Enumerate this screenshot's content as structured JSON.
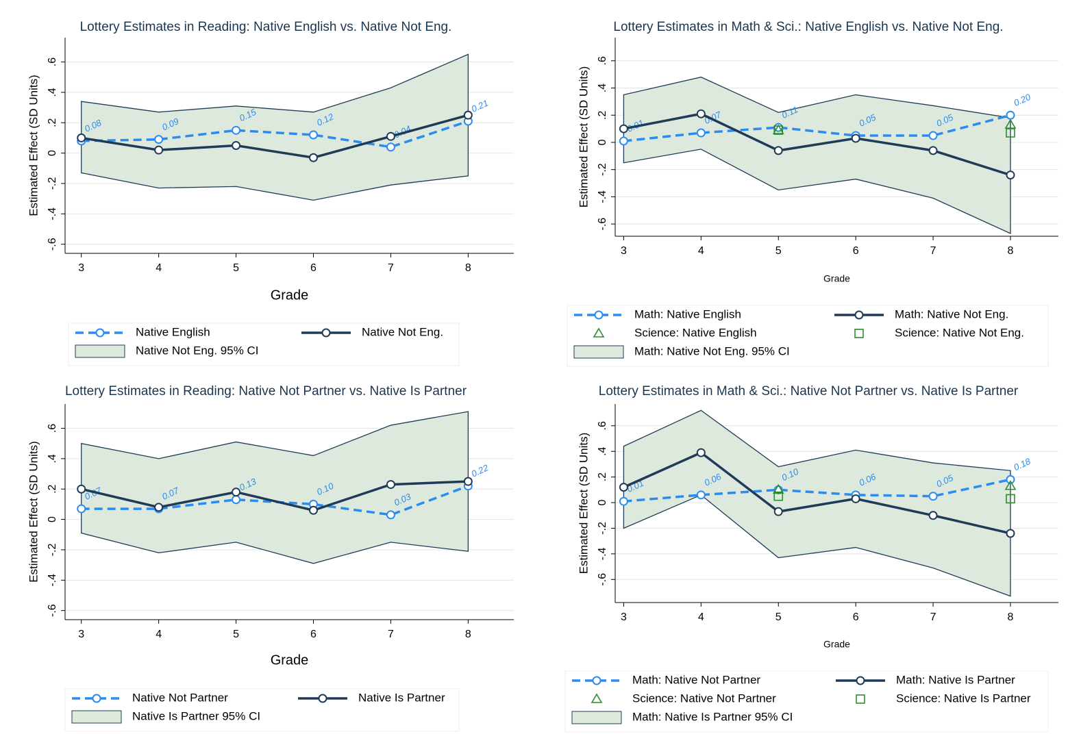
{
  "chart_data": [
    {
      "type": "line",
      "title": "Lottery Estimates in Reading: Native English vs. Native Not Eng.",
      "x_label": "Grade",
      "y_label": "Estimated Effect (SD Units)",
      "x": [
        3,
        4,
        5,
        6,
        7,
        8
      ],
      "xlim": [
        2.79,
        8.59
      ],
      "xticks": [
        3,
        4,
        5,
        6,
        7,
        8
      ],
      "ylim": [
        -0.66,
        0.76
      ],
      "yticks": [
        {
          "value": -0.6,
          "label": "-.6"
        },
        {
          "value": -0.4,
          "label": "-.4"
        },
        {
          "value": -0.2,
          "label": "-.2"
        },
        0,
        {
          "value": 0.2,
          "label": ".2"
        },
        {
          "value": 0.4,
          "label": ".4"
        },
        {
          "value": 0.6,
          "label": ".6"
        }
      ],
      "grid": true,
      "ci": {
        "name": "Native Not Eng. 95% CI",
        "color": "#dde9dc",
        "lower": [
          -0.13,
          -0.23,
          -0.22,
          -0.31,
          -0.21,
          -0.15
        ],
        "upper": [
          0.34,
          0.27,
          0.31,
          0.27,
          0.43,
          0.65
        ]
      },
      "series": [
        {
          "name": "Native English",
          "color": "#2a8cf0",
          "style": "dashed",
          "marker": "circle",
          "values": [
            0.08,
            0.09,
            0.15,
            0.12,
            0.04,
            0.21
          ],
          "value_labels": [
            "0.08",
            "0.09",
            "0.15",
            "0.12",
            "0.04",
            "0.21"
          ]
        },
        {
          "name": "Native Not Eng.",
          "color": "#1f3b58",
          "style": "solid",
          "marker": "circle",
          "values": [
            0.1,
            0.02,
            0.05,
            -0.03,
            0.11,
            0.25
          ]
        }
      ]
    },
    {
      "type": "line",
      "title": "Lottery Estimates in Math & Sci.: Native English vs. Native Not Eng.",
      "x_label": "Grade",
      "y_label": "Estimated Effect (SD Units)",
      "x": [
        3,
        4,
        5,
        6,
        7,
        8
      ],
      "xlim": [
        2.89,
        8.62
      ],
      "xticks": [
        3,
        4,
        5,
        6,
        7,
        8
      ],
      "ylim": [
        -0.69,
        0.77
      ],
      "yticks": [
        {
          "value": -0.6,
          "label": "-.6"
        },
        {
          "value": -0.4,
          "label": "-.4"
        },
        {
          "value": -0.2,
          "label": "-.2"
        },
        0,
        {
          "value": 0.2,
          "label": ".2"
        },
        {
          "value": 0.4,
          "label": ".4"
        },
        {
          "value": 0.6,
          "label": ".6"
        }
      ],
      "grid": true,
      "ci": {
        "name": "Math: Native Not Eng. 95% CI",
        "color": "#dde9dc",
        "lower": [
          -0.15,
          -0.05,
          -0.35,
          -0.27,
          -0.41,
          -0.67
        ],
        "upper": [
          0.35,
          0.48,
          0.22,
          0.35,
          0.27,
          0.18
        ]
      },
      "series": [
        {
          "name": "Math: Native English",
          "color": "#2a8cf0",
          "style": "dashed",
          "marker": "circle",
          "values": [
            0.01,
            0.07,
            0.11,
            0.05,
            0.05,
            0.2
          ],
          "value_labels": [
            "0.01",
            "0.07",
            "0.11",
            "0.05",
            "0.05",
            "0.20"
          ]
        },
        {
          "name": "Math: Native Not Eng.",
          "color": "#1f3b58",
          "style": "solid",
          "marker": "circle",
          "values": [
            0.1,
            0.21,
            -0.06,
            0.03,
            -0.06,
            -0.24
          ]
        },
        {
          "name": "Science: Native English",
          "color": "#2e8b2e",
          "style": "none",
          "marker": "triangle",
          "values": [
            null,
            null,
            0.09,
            null,
            null,
            0.13
          ]
        },
        {
          "name": "Science: Native Not Eng.",
          "color": "#2e8b2e",
          "style": "none",
          "marker": "square",
          "values": [
            null,
            null,
            0.09,
            null,
            null,
            0.07
          ]
        }
      ]
    },
    {
      "type": "line",
      "title": "Lottery Estimates in Reading: Native Not Partner vs. Native Is Partner",
      "x_label": "Grade",
      "y_label": "Estimated Effect (SD Units)",
      "x": [
        3,
        4,
        5,
        6,
        7,
        8
      ],
      "xlim": [
        2.79,
        8.59
      ],
      "xticks": [
        3,
        4,
        5,
        6,
        7,
        8
      ],
      "ylim": [
        -0.66,
        0.76
      ],
      "yticks": [
        {
          "value": -0.6,
          "label": "-.6"
        },
        {
          "value": -0.4,
          "label": "-.4"
        },
        {
          "value": -0.2,
          "label": "-.2"
        },
        0,
        {
          "value": 0.2,
          "label": ".2"
        },
        {
          "value": 0.4,
          "label": ".4"
        },
        {
          "value": 0.6,
          "label": ".6"
        }
      ],
      "grid": true,
      "ci": {
        "name": "Native Is Partner 95% CI",
        "color": "#dde9dc",
        "lower": [
          -0.09,
          -0.22,
          -0.15,
          -0.29,
          -0.15,
          -0.21
        ],
        "upper": [
          0.5,
          0.4,
          0.51,
          0.42,
          0.62,
          0.71
        ]
      },
      "series": [
        {
          "name": "Native Not Partner",
          "color": "#2a8cf0",
          "style": "dashed",
          "marker": "circle",
          "values": [
            0.07,
            0.07,
            0.13,
            0.1,
            0.03,
            0.22
          ],
          "value_labels": [
            "0.07",
            "0.07",
            "0.13",
            "0.10",
            "0.03",
            "0.22"
          ]
        },
        {
          "name": "Native Is Partner",
          "color": "#1f3b58",
          "style": "solid",
          "marker": "circle",
          "values": [
            0.2,
            0.08,
            0.18,
            0.06,
            0.23,
            0.25
          ]
        }
      ]
    },
    {
      "type": "line",
      "title": "Lottery Estimates in Math & Sci.: Native Not Partner vs. Native Is Partner",
      "x_label": "Grade",
      "y_label": "Estimated Effect (SD Units)",
      "x": [
        3,
        4,
        5,
        6,
        7,
        8
      ],
      "xlim": [
        2.89,
        8.62
      ],
      "xticks": [
        3,
        4,
        5,
        6,
        7,
        8
      ],
      "ylim": [
        -0.78,
        0.77
      ],
      "yticks": [
        {
          "value": -0.6,
          "label": "-.6"
        },
        {
          "value": -0.4,
          "label": "-.4"
        },
        {
          "value": -0.2,
          "label": "-.2"
        },
        0,
        {
          "value": 0.2,
          "label": ".2"
        },
        {
          "value": 0.4,
          "label": ".4"
        },
        {
          "value": 0.6,
          "label": ".6"
        }
      ],
      "grid": true,
      "ci": {
        "name": "Math: Native Is Partner 95% CI",
        "color": "#dde9dc",
        "lower": [
          -0.2,
          0.06,
          -0.43,
          -0.35,
          -0.51,
          -0.73
        ],
        "upper": [
          0.44,
          0.72,
          0.28,
          0.41,
          0.31,
          0.25
        ]
      },
      "series": [
        {
          "name": "Math: Native Not Partner",
          "color": "#2a8cf0",
          "style": "dashed",
          "marker": "circle",
          "values": [
            0.01,
            0.06,
            0.1,
            0.06,
            0.05,
            0.18
          ],
          "value_labels": [
            "0.01",
            "0.06",
            "0.10",
            "0.06",
            "0.05",
            "0.18"
          ]
        },
        {
          "name": "Math: Native Is Partner",
          "color": "#1f3b58",
          "style": "solid",
          "marker": "circle",
          "values": [
            0.12,
            0.39,
            -0.07,
            0.03,
            -0.1,
            -0.24
          ]
        },
        {
          "name": "Science: Native Not Partner",
          "color": "#2e8b2e",
          "style": "none",
          "marker": "triangle",
          "values": [
            null,
            null,
            0.1,
            null,
            null,
            0.13
          ]
        },
        {
          "name": "Science: Native Is Partner",
          "color": "#2e8b2e",
          "style": "none",
          "marker": "square",
          "values": [
            null,
            null,
            0.05,
            null,
            null,
            0.03
          ]
        }
      ]
    }
  ]
}
